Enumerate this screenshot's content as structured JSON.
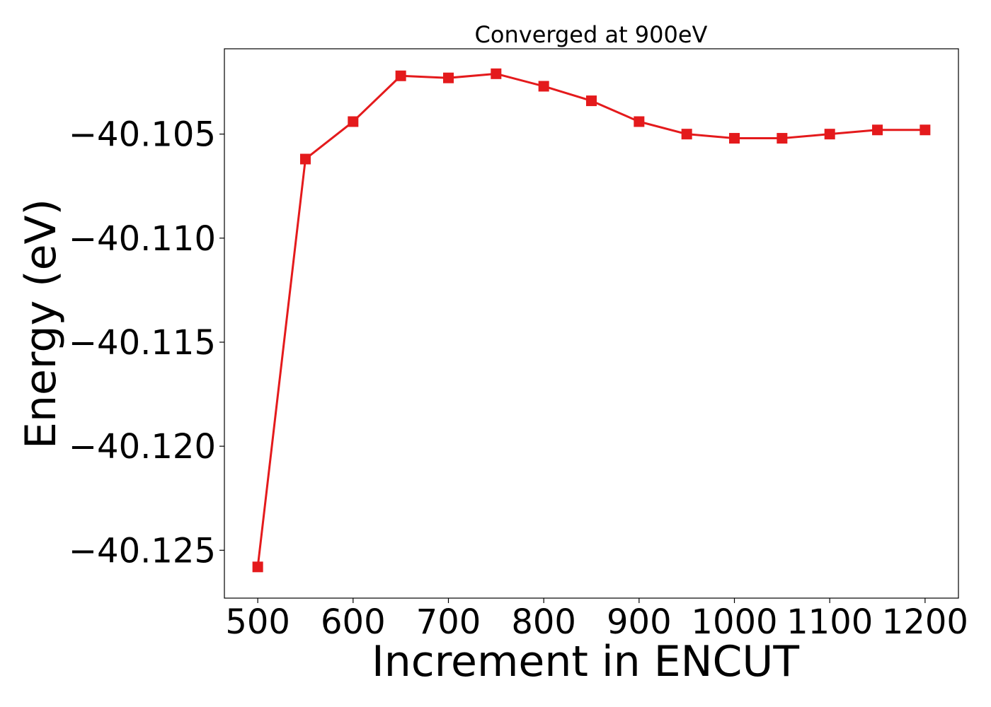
{
  "colors": {
    "series": "#e41a1c",
    "axis": "#000000",
    "background": "#ffffff"
  },
  "chart_data": {
    "type": "line",
    "title": "Converged at 900eV",
    "xlabel": "Increment in ENCUT",
    "ylabel": "Energy (eV)",
    "xlim": [
      465,
      1235
    ],
    "ylim": [
      -40.1273,
      -40.1009
    ],
    "xticks": [
      500,
      600,
      700,
      800,
      900,
      1000,
      1100,
      1200
    ],
    "xtick_labels": [
      "500",
      "600",
      "700",
      "800",
      "900",
      "1000",
      "1100",
      "1200"
    ],
    "yticks": [
      -40.125,
      -40.12,
      -40.115,
      -40.11,
      -40.105
    ],
    "ytick_labels": [
      "−40.125",
      "−40.120",
      "−40.115",
      "−40.110",
      "−40.105"
    ],
    "grid": false,
    "marker": "square",
    "series": [
      {
        "x": [
          500,
          550,
          600,
          650,
          700,
          750,
          800,
          850,
          900,
          950,
          1000,
          1050,
          1100,
          1150,
          1200
        ],
        "values": [
          -40.1258,
          -40.1062,
          -40.1044,
          -40.1022,
          -40.1023,
          -40.1021,
          -40.1027,
          -40.1034,
          -40.1044,
          -40.105,
          -40.1052,
          -40.1052,
          -40.105,
          -40.1048,
          -40.1048
        ]
      }
    ]
  }
}
